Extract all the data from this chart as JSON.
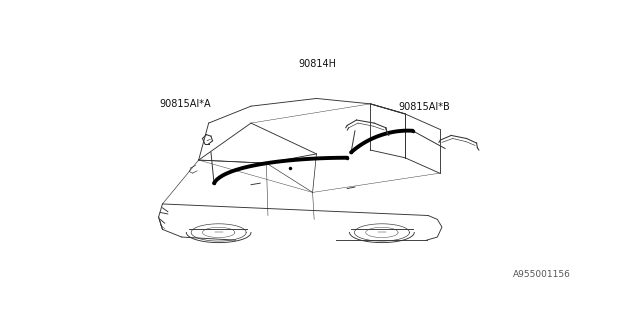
{
  "bg_color": "#ffffff",
  "diagram_id": "A955001156",
  "line_color": "#111111",
  "car_color": "#333333",
  "font_size": 7,
  "diagram_id_fontsize": 6.5,
  "labels": {
    "90814H": [
      0.478,
      0.895
    ],
    "90815AI*A": [
      0.21,
      0.735
    ],
    "90815AI*B": [
      0.695,
      0.72
    ]
  }
}
